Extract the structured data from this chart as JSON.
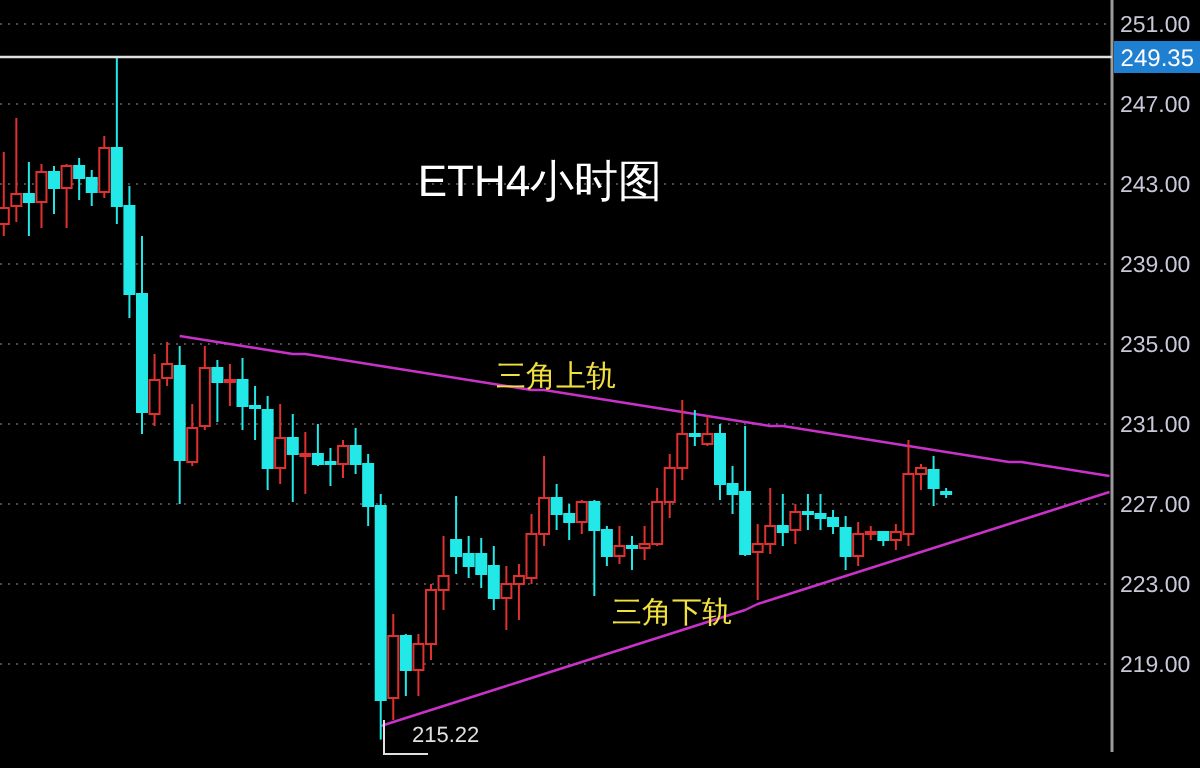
{
  "chart_data": {
    "type": "candlestick",
    "title": "ETH4小时图",
    "annotations": [
      "三角上轨",
      "三角下轨",
      "215.22"
    ],
    "categories": [
      null,
      null,
      null,
      null,
      null,
      null,
      null,
      null,
      null,
      null,
      null,
      null,
      null,
      null,
      null,
      null,
      null,
      null,
      null,
      null,
      null,
      null,
      null,
      null,
      null,
      null,
      null,
      null,
      null,
      null,
      null,
      null,
      null,
      null,
      null,
      null,
      null,
      null,
      null,
      null,
      null,
      null,
      null,
      null,
      null,
      null,
      null,
      null,
      null,
      null,
      null,
      null,
      null,
      null,
      null,
      null,
      null,
      null,
      null,
      null,
      null,
      null,
      null,
      null,
      null,
      null,
      null,
      null,
      null,
      null,
      null,
      null,
      null,
      null,
      null,
      null,
      null,
      null,
      null,
      null,
      null,
      null,
      null,
      null,
      null,
      null,
      null,
      null,
      null
    ],
    "ohlc": [
      [
        241.0,
        244.6,
        240.4,
        241.8
      ],
      [
        241.9,
        246.3,
        241.1,
        242.5
      ],
      [
        242.5,
        244.1,
        240.4,
        242.1
      ],
      [
        242.1,
        244.0,
        240.8,
        243.6
      ],
      [
        243.6,
        243.9,
        241.5,
        242.8
      ],
      [
        242.8,
        244.0,
        240.8,
        243.9
      ],
      [
        243.9,
        244.3,
        242.2,
        243.3
      ],
      [
        243.3,
        243.7,
        241.9,
        242.6
      ],
      [
        242.6,
        245.4,
        242.3,
        244.8
      ],
      [
        244.8,
        249.35,
        241.0,
        241.9
      ],
      [
        241.9,
        242.9,
        236.3,
        237.5
      ],
      [
        237.5,
        240.4,
        230.5,
        231.6
      ],
      [
        231.5,
        234.5,
        230.9,
        233.2
      ],
      [
        233.3,
        235.1,
        232.9,
        234.0
      ],
      [
        233.9,
        234.9,
        227.0,
        229.2
      ],
      [
        229.1,
        232.0,
        228.9,
        230.8
      ],
      [
        230.9,
        234.9,
        230.7,
        233.8
      ],
      [
        233.8,
        234.2,
        231.1,
        233.1
      ],
      [
        233.1,
        234.0,
        231.9,
        233.2
      ],
      [
        233.2,
        234.3,
        230.7,
        231.9
      ],
      [
        231.9,
        232.9,
        230.2,
        231.8
      ],
      [
        231.7,
        232.4,
        227.7,
        228.8
      ],
      [
        228.8,
        232.0,
        228.0,
        230.3
      ],
      [
        230.3,
        231.5,
        227.1,
        229.5
      ],
      [
        229.4,
        230.6,
        227.5,
        229.5
      ],
      [
        229.5,
        231.0,
        228.9,
        229.0
      ],
      [
        229.1,
        229.8,
        227.9,
        229.0
      ],
      [
        229.0,
        230.2,
        228.3,
        229.9
      ],
      [
        229.9,
        230.8,
        228.5,
        229.0
      ],
      [
        229.0,
        229.5,
        225.9,
        226.9
      ],
      [
        226.9,
        227.5,
        215.22,
        217.2
      ],
      [
        217.3,
        221.5,
        216.2,
        220.4
      ],
      [
        220.4,
        220.5,
        217.4,
        218.7
      ],
      [
        218.7,
        220.5,
        217.4,
        220.0
      ],
      [
        220.0,
        223.0,
        219.2,
        222.7
      ],
      [
        222.7,
        225.4,
        221.7,
        223.4
      ],
      [
        225.2,
        227.4,
        223.5,
        224.4
      ],
      [
        224.5,
        225.4,
        223.3,
        223.9
      ],
      [
        224.5,
        225.3,
        222.8,
        223.5
      ],
      [
        223.9,
        224.9,
        221.7,
        222.3
      ],
      [
        222.3,
        223.9,
        220.7,
        223.0
      ],
      [
        223.0,
        224.0,
        221.2,
        223.4
      ],
      [
        223.3,
        226.5,
        223.0,
        225.5
      ],
      [
        225.5,
        229.4,
        224.9,
        227.3
      ],
      [
        227.3,
        228.0,
        225.7,
        226.5
      ],
      [
        226.5,
        227.0,
        225.2,
        226.1
      ],
      [
        226.1,
        227.2,
        225.5,
        227.1
      ],
      [
        227.1,
        227.2,
        222.4,
        225.7
      ],
      [
        225.7,
        225.9,
        223.9,
        224.4
      ],
      [
        224.4,
        225.9,
        224.0,
        224.9
      ],
      [
        224.9,
        225.4,
        223.7,
        224.8
      ],
      [
        224.8,
        225.9,
        224.2,
        225.0
      ],
      [
        225.0,
        227.8,
        224.9,
        227.1
      ],
      [
        227.1,
        229.5,
        226.3,
        228.8
      ],
      [
        228.8,
        232.2,
        228.2,
        230.5
      ],
      [
        230.5,
        231.7,
        229.9,
        230.4
      ],
      [
        230.0,
        231.4,
        229.9,
        230.5
      ],
      [
        230.5,
        231.0,
        227.2,
        228.0
      ],
      [
        228.0,
        228.9,
        226.5,
        227.5
      ],
      [
        227.6,
        230.9,
        224.4,
        224.5
      ],
      [
        224.6,
        226.0,
        222.2,
        225.0
      ],
      [
        225.0,
        227.8,
        224.5,
        225.9
      ],
      [
        225.9,
        227.5,
        224.9,
        225.6
      ],
      [
        225.7,
        227.0,
        225.0,
        226.6
      ],
      [
        226.6,
        227.5,
        225.7,
        226.5
      ],
      [
        226.5,
        227.5,
        225.7,
        226.3
      ],
      [
        226.3,
        226.7,
        225.5,
        225.9
      ],
      [
        225.8,
        226.4,
        223.7,
        224.4
      ],
      [
        224.4,
        226.1,
        223.9,
        225.5
      ],
      [
        225.5,
        225.9,
        225.2,
        225.6
      ],
      [
        225.6,
        225.6,
        224.9,
        225.2
      ],
      [
        225.2,
        226.0,
        224.7,
        225.6
      ],
      [
        225.5,
        230.2,
        224.9,
        228.5
      ],
      [
        228.5,
        229.0,
        227.7,
        228.8
      ],
      [
        228.7,
        229.4,
        226.9,
        227.8
      ],
      [
        227.6,
        227.8,
        227.3,
        227.5
      ],
      null,
      null,
      null,
      null,
      null,
      null,
      null,
      null,
      null,
      null,
      null,
      null,
      null
    ],
    "series": [
      {
        "type": "line",
        "color": "#c832c8",
        "values": [
          null,
          null,
          null,
          null,
          null,
          null,
          null,
          null,
          null,
          null,
          null,
          null,
          null,
          null,
          235.4,
          235.3,
          235.2,
          235.1,
          235.0,
          234.9,
          234.8,
          234.7,
          234.6,
          234.5,
          234.5,
          234.4,
          234.3,
          234.2,
          234.1,
          234.0,
          233.9,
          233.8,
          233.7,
          233.6,
          233.5,
          233.4,
          233.3,
          233.2,
          233.1,
          233.0,
          232.9,
          232.8,
          232.7,
          232.7,
          232.6,
          232.5,
          232.4,
          232.3,
          232.2,
          232.1,
          232.0,
          231.9,
          231.8,
          231.7,
          231.6,
          231.5,
          231.4,
          231.3,
          231.2,
          231.1,
          231.0,
          230.9,
          230.9,
          230.8,
          230.7,
          230.6,
          230.5,
          230.4,
          230.3,
          230.2,
          230.1,
          230.0,
          229.9,
          229.8,
          229.7,
          229.6,
          229.5,
          229.4,
          229.3,
          229.2,
          229.1,
          229.1,
          229.0,
          228.9,
          228.8,
          228.7,
          228.6,
          228.5,
          228.4
        ]
      },
      {
        "type": "line",
        "color": "#c832c8",
        "values": [
          null,
          null,
          null,
          null,
          null,
          null,
          null,
          null,
          null,
          null,
          null,
          null,
          null,
          null,
          null,
          null,
          null,
          null,
          null,
          null,
          null,
          null,
          null,
          null,
          null,
          null,
          null,
          null,
          null,
          null,
          215.9,
          216.1,
          216.3,
          216.5,
          216.7,
          216.9,
          217.1,
          217.3,
          217.5,
          217.7,
          217.9,
          218.1,
          218.3,
          218.5,
          218.7,
          218.9,
          219.1,
          219.3,
          219.5,
          219.7,
          219.9,
          220.1,
          220.3,
          220.5,
          220.7,
          220.9,
          221.1,
          221.3,
          221.5,
          221.7,
          222.0,
          222.2,
          222.4,
          222.6,
          222.8,
          223.0,
          223.2,
          223.4,
          223.6,
          223.8,
          224.0,
          224.2,
          224.4,
          224.6,
          224.8,
          225.0,
          225.2,
          225.4,
          225.6,
          225.8,
          226.0,
          226.2,
          226.4,
          226.6,
          226.8,
          227.0,
          227.2,
          227.4,
          227.6
        ]
      }
    ],
    "ylim": [
      214.6,
      252.2
    ],
    "yticks": [
      {
        "value": 219,
        "label": "219.00"
      },
      {
        "value": 223,
        "label": "223.00"
      },
      {
        "value": 227,
        "label": "227.00"
      },
      {
        "value": 231,
        "label": "231.00"
      },
      {
        "value": 235,
        "label": "235.00"
      },
      {
        "value": 239,
        "label": "239.00"
      },
      {
        "value": 243,
        "label": "243.00"
      },
      {
        "value": 247,
        "label": "247.00"
      },
      {
        "value": 251,
        "label": "251.00"
      }
    ],
    "ref_lines": [
      {
        "axis": "y",
        "value": 249.35,
        "label": "249.35",
        "color": "#e0e0e0"
      }
    ],
    "grid": "y"
  }
}
